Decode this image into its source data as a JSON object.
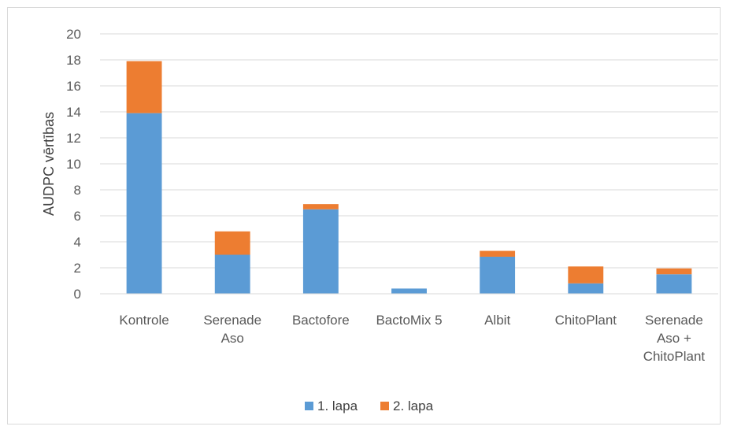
{
  "chart_data": {
    "type": "bar",
    "stacked": true,
    "categories": [
      [
        "Kontrole"
      ],
      [
        "Serenade",
        "Aso"
      ],
      [
        "Bactofore"
      ],
      [
        "BactoMix 5"
      ],
      [
        "Albit"
      ],
      [
        "ChitoPlant"
      ],
      [
        "Serenade",
        "Aso +",
        "ChitoPlant"
      ]
    ],
    "series": [
      {
        "name": "1. lapa",
        "color": "#5b9bd5",
        "values": [
          13.9,
          3.0,
          6.5,
          0.4,
          2.85,
          0.8,
          1.5
        ]
      },
      {
        "name": "2. lapa",
        "color": "#ed7d31",
        "values": [
          4.0,
          1.8,
          0.4,
          0.0,
          0.45,
          1.3,
          0.45
        ]
      }
    ],
    "title": "",
    "xlabel": "",
    "ylabel": "AUDPC vērtības",
    "ylim": [
      0,
      20
    ],
    "yticks": [
      0,
      2,
      4,
      6,
      8,
      10,
      12,
      14,
      16,
      18,
      20
    ],
    "grid": true,
    "legend": "bottom"
  }
}
